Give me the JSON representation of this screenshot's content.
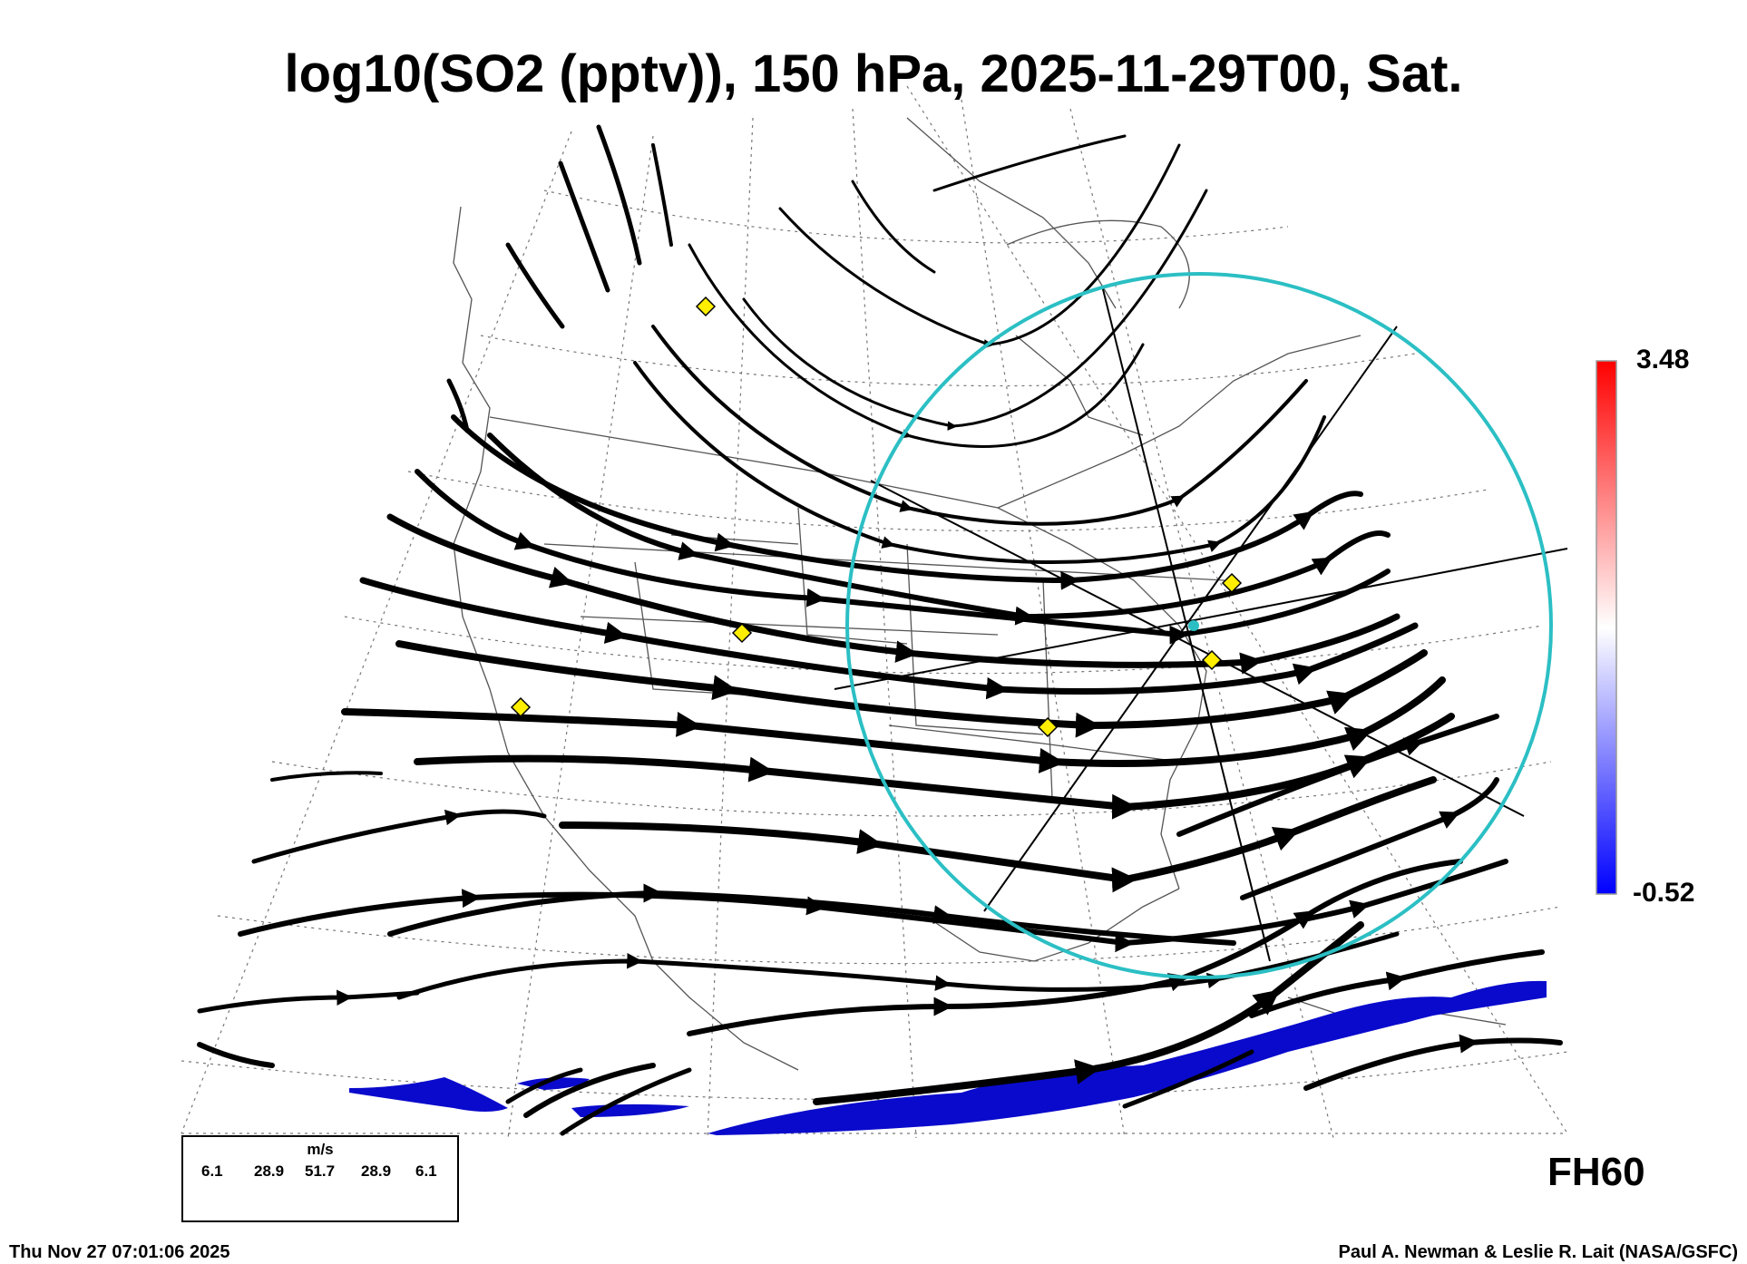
{
  "title": "log10(SO2 (pptv)), 150 hPa, 2025-11-29T00, Sat.",
  "colorbar": {
    "max_label": "3.48",
    "min_label": "-0.52",
    "top_color": "#ff0000",
    "mid_color": "#ffffff",
    "bottom_color": "#0000ff"
  },
  "forecast_hour": "FH60",
  "footer": {
    "timestamp": "Thu Nov 27 07:01:06 2025",
    "credit": "Paul A. Newman & Leslie R. Lait (NASA/GSFC)"
  },
  "legend": {
    "unit": "m/s",
    "speeds": [
      "6.1",
      "28.9",
      "51.7",
      "28.9",
      "6.1"
    ]
  },
  "colors": {
    "streamline": "#000000",
    "ring": "#2bbfc4",
    "marker": "#ffee00",
    "so2_patch": "#0000cc"
  }
}
